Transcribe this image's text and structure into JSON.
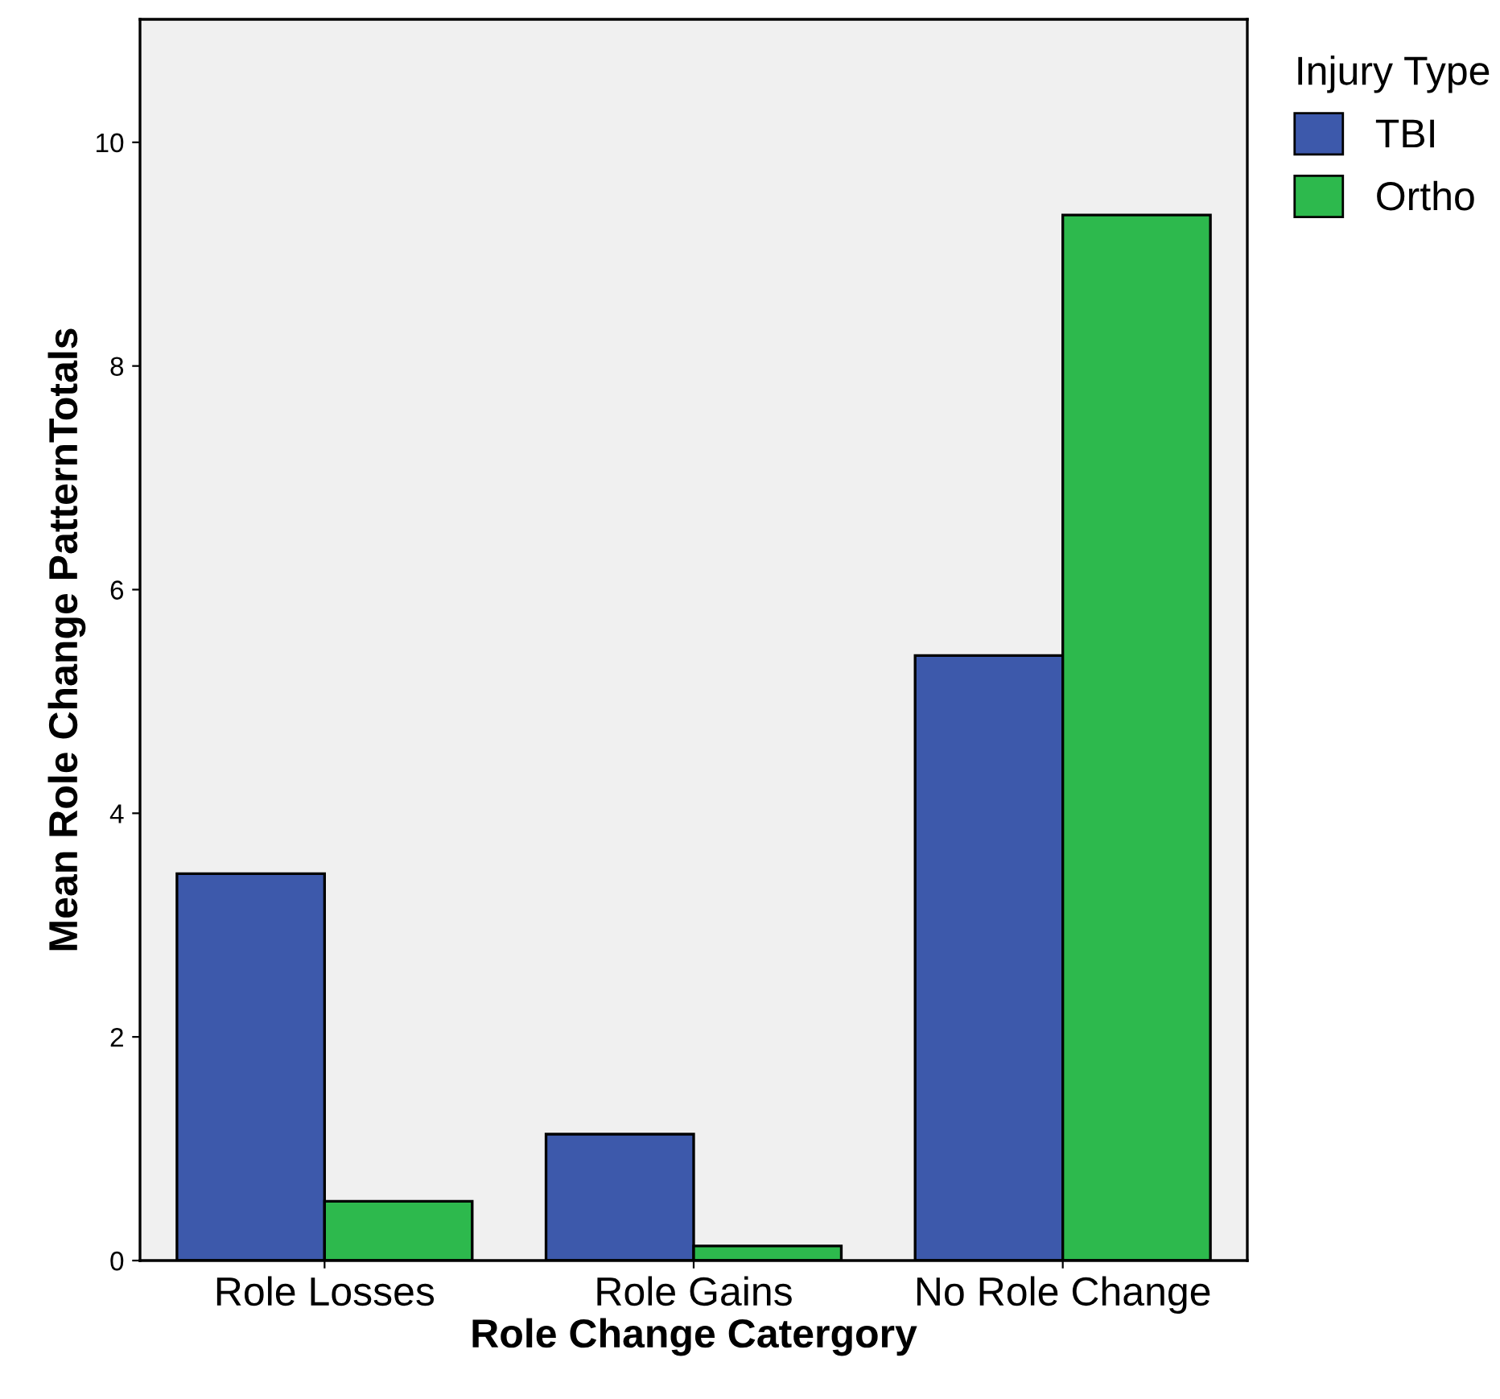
{
  "chart_data": {
    "type": "bar",
    "xlabel": "Role Change Catergory",
    "ylabel": "Mean Role Change PatternTotals",
    "legend_title": "Injury Type",
    "categories": [
      "Role Losses",
      "Role Gains",
      "No Role Change"
    ],
    "series": [
      {
        "name": "TBI",
        "color": "#3d59ab",
        "values": [
          3.46,
          1.13,
          5.41
        ]
      },
      {
        "name": "Ortho",
        "color": "#2db94d",
        "values": [
          0.53,
          0.13,
          9.35
        ]
      }
    ],
    "ylim": [
      0,
      11.1
    ],
    "yticks": [
      0,
      2,
      4,
      6,
      8,
      10
    ],
    "grid": false,
    "legend": "top right"
  }
}
